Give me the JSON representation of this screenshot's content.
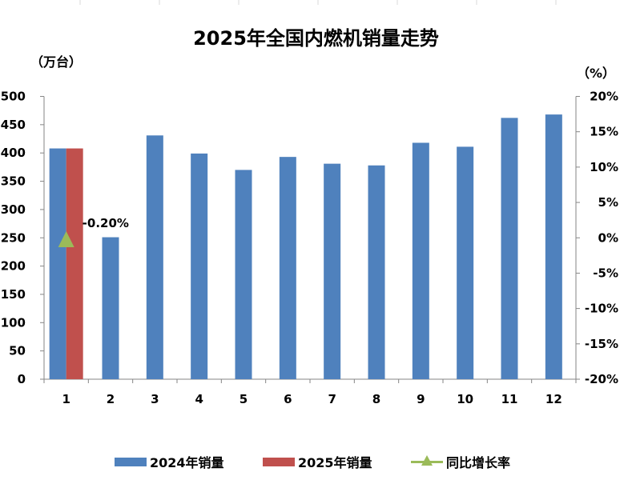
{
  "chart_data": {
    "type": "bar",
    "title": "2025年全国内燃机销量走势",
    "left_unit": "（万台）",
    "right_unit": "（%）",
    "categories": [
      "1",
      "2",
      "3",
      "4",
      "5",
      "6",
      "7",
      "8",
      "9",
      "10",
      "11",
      "12"
    ],
    "series": [
      {
        "name": "2024年销量",
        "type": "bar",
        "axis": "left",
        "color": "#4f81bd",
        "values": [
          408,
          251,
          431,
          399,
          370,
          393,
          381,
          378,
          418,
          411,
          462,
          468
        ]
      },
      {
        "name": "2025年销量",
        "type": "bar",
        "axis": "left",
        "color": "#c0504d",
        "values": [
          408,
          null,
          null,
          null,
          null,
          null,
          null,
          null,
          null,
          null,
          null,
          null
        ]
      },
      {
        "name": "同比增长率",
        "type": "line",
        "axis": "right",
        "color": "#9bbb59",
        "marker": "triangle",
        "values": [
          -0.2,
          null,
          null,
          null,
          null,
          null,
          null,
          null,
          null,
          null,
          null,
          null
        ]
      }
    ],
    "y_left": {
      "min": 0,
      "max": 500,
      "ticks": [
        "0",
        "50",
        "100",
        "150",
        "200",
        "250",
        "300",
        "350",
        "400",
        "450",
        "500"
      ]
    },
    "y_right": {
      "min": -20,
      "max": 20,
      "ticks": [
        "-20%",
        "-15%",
        "-10%",
        "-5%",
        "0%",
        "5%",
        "10%",
        "15%",
        "20%"
      ]
    },
    "data_labels": [
      {
        "series": "同比增长率",
        "category": "1",
        "text": "-0.20%"
      }
    ],
    "grid": false,
    "legend_position": "bottom"
  }
}
